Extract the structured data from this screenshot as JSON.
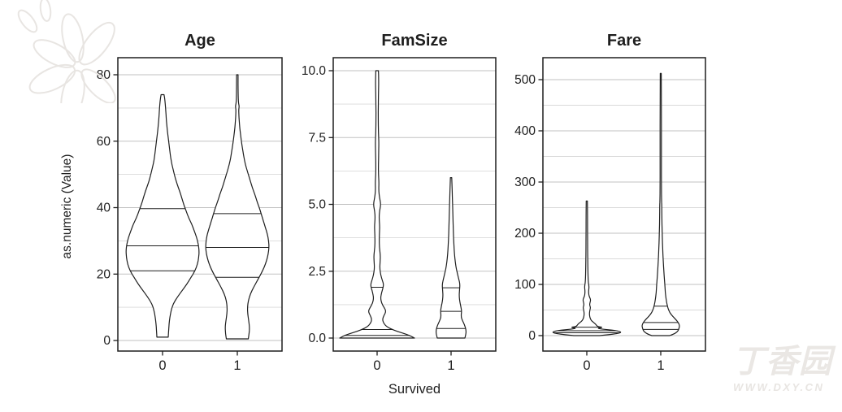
{
  "colors": {
    "outline": "#1e1e1e",
    "text": "#1e1e1e",
    "grid_major": "#c2c2c2",
    "grid_minor": "#dadada",
    "violin_fill": "#ffffff",
    "watermark": "#e8e5e2",
    "background": "#ffffff"
  },
  "watermark": {
    "cn": "丁香园",
    "url": "WWW.DXY.CN"
  },
  "chart_data": {
    "type": "violin",
    "xlabel": "Survived",
    "ylabel": "as.numeric (Value)",
    "x_categories": [
      "0",
      "1"
    ],
    "legend": "none",
    "grid": "on",
    "facets": [
      {
        "title": "Age",
        "ylim": [
          0,
          80
        ],
        "y_ticks": [
          {
            "v": 0,
            "label": "0"
          },
          {
            "v": 20,
            "label": "20"
          },
          {
            "v": 40,
            "label": "40"
          },
          {
            "v": 60,
            "label": "60"
          },
          {
            "v": 80,
            "label": "80"
          }
        ],
        "y_minor": [
          10,
          30,
          50,
          70
        ],
        "violins": [
          {
            "category": "0",
            "min": 1,
            "max": 74,
            "quantiles": [
              21,
              28.5,
              39.7
            ],
            "profile": [
              [
                1,
                7
              ],
              [
                3,
                7.5
              ],
              [
                5,
                8
              ],
              [
                7,
                9
              ],
              [
                9,
                10.5
              ],
              [
                11,
                13
              ],
              [
                13,
                18
              ],
              [
                15,
                24
              ],
              [
                17,
                30
              ],
              [
                19,
                35
              ],
              [
                21,
                40
              ],
              [
                23,
                43
              ],
              [
                25,
                44.5
              ],
              [
                27,
                45
              ],
              [
                29,
                44
              ],
              [
                31,
                42
              ],
              [
                33,
                39
              ],
              [
                35,
                36
              ],
              [
                37,
                32
              ],
              [
                39,
                29
              ],
              [
                41,
                26
              ],
              [
                43,
                23.5
              ],
              [
                45,
                21
              ],
              [
                47,
                18
              ],
              [
                49,
                15.5
              ],
              [
                51,
                13.5
              ],
              [
                53,
                11.5
              ],
              [
                55,
                10
              ],
              [
                57,
                9
              ],
              [
                59,
                8
              ],
              [
                61,
                7
              ],
              [
                63,
                6
              ],
              [
                65,
                5.2
              ],
              [
                67,
                4.5
              ],
              [
                69,
                4
              ],
              [
                71,
                3.4
              ],
              [
                73,
                2.6
              ],
              [
                74,
                1.8
              ]
            ]
          },
          {
            "category": "1",
            "min": 0.5,
            "max": 80,
            "quantiles": [
              19,
              28,
              38.2
            ],
            "profile": [
              [
                0.5,
                13.5
              ],
              [
                2,
                14.5
              ],
              [
                4,
                15
              ],
              [
                6,
                14
              ],
              [
                8,
                12.8
              ],
              [
                10,
                12.5
              ],
              [
                12,
                13.5
              ],
              [
                14,
                16
              ],
              [
                16,
                20
              ],
              [
                18,
                24.5
              ],
              [
                20,
                29
              ],
              [
                22,
                33
              ],
              [
                24,
                36
              ],
              [
                26,
                38
              ],
              [
                28,
                39
              ],
              [
                30,
                38.5
              ],
              [
                32,
                37
              ],
              [
                34,
                34.5
              ],
              [
                36,
                32
              ],
              [
                38,
                29.5
              ],
              [
                40,
                27
              ],
              [
                42,
                24
              ],
              [
                44,
                21.5
              ],
              [
                46,
                18.5
              ],
              [
                48,
                16
              ],
              [
                50,
                13.5
              ],
              [
                52,
                11
              ],
              [
                54,
                9
              ],
              [
                56,
                7.5
              ],
              [
                58,
                6.2
              ],
              [
                60,
                5
              ],
              [
                62,
                4
              ],
              [
                64,
                3
              ],
              [
                66,
                2.4
              ],
              [
                68,
                1.9
              ],
              [
                69.5,
                1.7
              ],
              [
                70.5,
                2.4
              ],
              [
                71.5,
                1.4
              ],
              [
                74,
                1
              ],
              [
                80,
                0.9
              ]
            ]
          }
        ]
      },
      {
        "title": "FamSize",
        "ylim": [
          0,
          10
        ],
        "y_ticks": [
          {
            "v": 0,
            "label": "0.0"
          },
          {
            "v": 2.5,
            "label": "2.5"
          },
          {
            "v": 5,
            "label": "5.0"
          },
          {
            "v": 7.5,
            "label": "7.5"
          },
          {
            "v": 10,
            "label": "10.0"
          }
        ],
        "y_minor": [
          1.25,
          3.75,
          6.25,
          8.75
        ],
        "violins": [
          {
            "category": "0",
            "min": 0,
            "max": 10,
            "quantiles": [
              0.1,
              0.32,
              1.9
            ],
            "profile": [
              [
                0,
                46
              ],
              [
                0.1,
                40
              ],
              [
                0.2,
                30
              ],
              [
                0.3,
                20
              ],
              [
                0.42,
                12
              ],
              [
                0.55,
                8
              ],
              [
                0.7,
                6.5
              ],
              [
                0.85,
                8.5
              ],
              [
                1,
                11
              ],
              [
                1.15,
                8.5
              ],
              [
                1.3,
                5.5
              ],
              [
                1.5,
                4.2
              ],
              [
                1.7,
                5.5
              ],
              [
                1.85,
                7
              ],
              [
                2,
                8
              ],
              [
                2.15,
                6.5
              ],
              [
                2.35,
                4.5
              ],
              [
                2.6,
                3.2
              ],
              [
                2.9,
                3.8
              ],
              [
                3.1,
                4
              ],
              [
                3.4,
                2.8
              ],
              [
                3.7,
                2.6
              ],
              [
                4,
                3
              ],
              [
                4.2,
                3.2
              ],
              [
                4.5,
                2.4
              ],
              [
                4.75,
                3
              ],
              [
                5,
                4.6
              ],
              [
                5.25,
                3
              ],
              [
                5.5,
                2
              ],
              [
                5.8,
                2.3
              ],
              [
                6.1,
                1.7
              ],
              [
                6.5,
                1.6
              ],
              [
                6.9,
                1.9
              ],
              [
                7.3,
                2.2
              ],
              [
                7.7,
                1.6
              ],
              [
                8.2,
                1.4
              ],
              [
                8.7,
                1.5
              ],
              [
                9.3,
                1.8
              ],
              [
                9.7,
                1.9
              ],
              [
                10,
                1.6
              ]
            ]
          },
          {
            "category": "1",
            "min": 0,
            "max": 6,
            "quantiles": [
              0.36,
              1.0,
              1.88
            ],
            "profile": [
              [
                0,
                17
              ],
              [
                0.15,
                18.3
              ],
              [
                0.3,
                18.5
              ],
              [
                0.5,
                16.5
              ],
              [
                0.65,
                14
              ],
              [
                0.8,
                12.3
              ],
              [
                1,
                13
              ],
              [
                1.15,
                12.2
              ],
              [
                1.35,
                10.8
              ],
              [
                1.55,
                10
              ],
              [
                1.75,
                10.3
              ],
              [
                2,
                11
              ],
              [
                2.2,
                9.5
              ],
              [
                2.45,
                7.5
              ],
              [
                2.7,
                5.8
              ],
              [
                3,
                4.6
              ],
              [
                3.3,
                3.8
              ],
              [
                3.7,
                3.1
              ],
              [
                4.1,
                2.7
              ],
              [
                4.5,
                2.3
              ],
              [
                5,
                1.9
              ],
              [
                5.5,
                1.4
              ],
              [
                6,
                0.8
              ]
            ]
          }
        ]
      },
      {
        "title": "Fare",
        "ylim": [
          0,
          512
        ],
        "y_ticks": [
          {
            "v": 0,
            "label": "0"
          },
          {
            "v": 100,
            "label": "100"
          },
          {
            "v": 200,
            "label": "200"
          },
          {
            "v": 300,
            "label": "300"
          },
          {
            "v": 400,
            "label": "400"
          },
          {
            "v": 500,
            "label": "500"
          }
        ],
        "y_minor": [
          50,
          150,
          250,
          350,
          450
        ],
        "violins": [
          {
            "category": "0",
            "min": 0,
            "max": 263,
            "quantiles": [
              5.5,
              9.5,
              16.5
            ],
            "profile": [
              [
                0,
                16
              ],
              [
                2,
                28
              ],
              [
                4,
                37
              ],
              [
                6,
                42
              ],
              [
                8,
                41
              ],
              [
                10,
                35
              ],
              [
                11.5,
                27
              ],
              [
                13,
                17
              ],
              [
                14.5,
                13
              ],
              [
                16,
                20
              ],
              [
                17.5,
                14
              ],
              [
                19,
                12.5
              ],
              [
                22,
                11
              ],
              [
                25,
                9
              ],
              [
                28,
                6.5
              ],
              [
                32,
                4.6
              ],
              [
                37,
                3.6
              ],
              [
                43,
                3.2
              ],
              [
                50,
                3.8
              ],
              [
                55,
                4.6
              ],
              [
                60,
                3.4
              ],
              [
                65,
                4
              ],
              [
                70,
                4.8
              ],
              [
                75,
                3.4
              ],
              [
                80,
                2.4
              ],
              [
                88,
                2.2
              ],
              [
                95,
                2.8
              ],
              [
                102,
                2
              ],
              [
                112,
                1.6
              ],
              [
                125,
                1.4
              ],
              [
                145,
                1.2
              ],
              [
                170,
                1
              ],
              [
                200,
                0.9
              ],
              [
                235,
                0.9
              ],
              [
                263,
                0.7
              ]
            ]
          },
          {
            "category": "1",
            "min": 0,
            "max": 512,
            "quantiles": [
              12,
              25.5,
              57.5
            ],
            "profile": [
              [
                0,
                11
              ],
              [
                3,
                16
              ],
              [
                6,
                19
              ],
              [
                9,
                21
              ],
              [
                12,
                22
              ],
              [
                15,
                22.5
              ],
              [
                18,
                23
              ],
              [
                21,
                22.8
              ],
              [
                24,
                22
              ],
              [
                27,
                20.8
              ],
              [
                30,
                19.3
              ],
              [
                34,
                17
              ],
              [
                38,
                14.5
              ],
              [
                42,
                12.5
              ],
              [
                47,
                10.5
              ],
              [
                52,
                9.2
              ],
              [
                58,
                8.2
              ],
              [
                65,
                7.2
              ],
              [
                72,
                6.5
              ],
              [
                80,
                5.9
              ],
              [
                90,
                5.4
              ],
              [
                100,
                5
              ],
              [
                112,
                4.4
              ],
              [
                126,
                3.8
              ],
              [
                142,
                3.2
              ],
              [
                160,
                2.6
              ],
              [
                180,
                2.1
              ],
              [
                205,
                1.7
              ],
              [
                230,
                1.4
              ],
              [
                255,
                1.3
              ],
              [
                265,
                1
              ],
              [
                290,
                0.85
              ],
              [
                330,
                0.8
              ],
              [
                380,
                0.8
              ],
              [
                440,
                0.8
              ],
              [
                512,
                0.65
              ]
            ]
          }
        ]
      }
    ]
  }
}
